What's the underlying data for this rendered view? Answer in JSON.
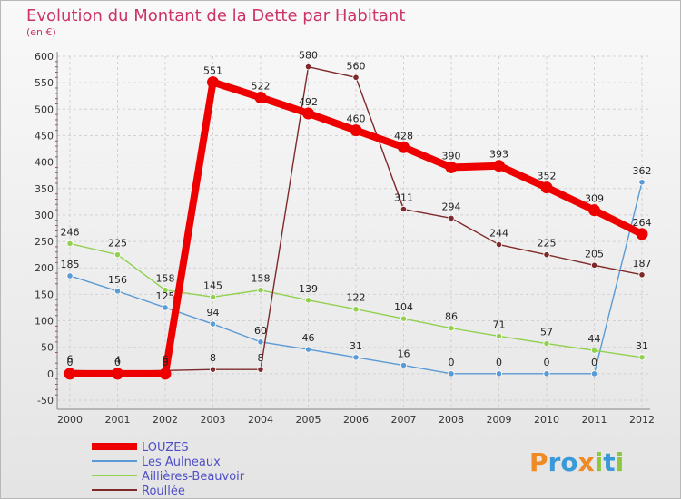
{
  "chart_data": {
    "type": "line",
    "title": "Evolution du Montant de la Dette par Habitant",
    "subtitle": "(en €)",
    "xlabel": "",
    "ylabel": "",
    "categories": [
      "2000",
      "2001",
      "2002",
      "2003",
      "2004",
      "2005",
      "2006",
      "2007",
      "2008",
      "2009",
      "2010",
      "2011",
      "2012"
    ],
    "ylim": [
      -50,
      600
    ],
    "yticks": [
      -50,
      0,
      50,
      100,
      150,
      200,
      250,
      300,
      350,
      400,
      450,
      500,
      550,
      600
    ],
    "grid": true,
    "legend_position": "bottom-left",
    "series": [
      {
        "name": "LOUZES",
        "color": "#ee0000",
        "values": [
          0,
          0,
          0,
          551,
          522,
          492,
          460,
          428,
          390,
          393,
          352,
          309,
          264
        ]
      },
      {
        "name": "Les Aulneaux",
        "color": "#5b9bd5",
        "values": [
          185,
          156,
          125,
          94,
          60,
          46,
          31,
          16,
          0,
          0,
          0,
          0,
          362
        ]
      },
      {
        "name": "Aillières-Beauvoir",
        "color": "#92d050",
        "values": [
          246,
          225,
          158,
          145,
          158,
          139,
          122,
          104,
          86,
          71,
          57,
          44,
          31
        ]
      },
      {
        "name": "Roullée",
        "color": "#7f2a2a",
        "values": [
          6,
          4,
          6,
          8,
          8,
          580,
          560,
          311,
          294,
          244,
          225,
          205,
          187
        ]
      }
    ]
  },
  "brand": {
    "text": "Proxiti"
  }
}
